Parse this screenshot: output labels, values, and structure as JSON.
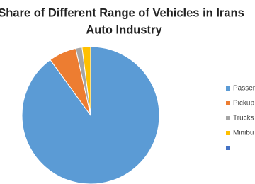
{
  "chart_data": {
    "type": "pie",
    "title": [
      "Share of Different Range of Vehicles in Irans",
      "Auto Industry"
    ],
    "categories": [
      "Passeng",
      "Pickup",
      "Trucks",
      "Minibu",
      null
    ],
    "values": [
      90,
      6.5,
      1.5,
      2,
      0
    ],
    "colors": [
      "#5b9bd5",
      "#ed7d31",
      "#a5a5a5",
      "#ffc000",
      "#4472c4"
    ],
    "legend": "right"
  }
}
